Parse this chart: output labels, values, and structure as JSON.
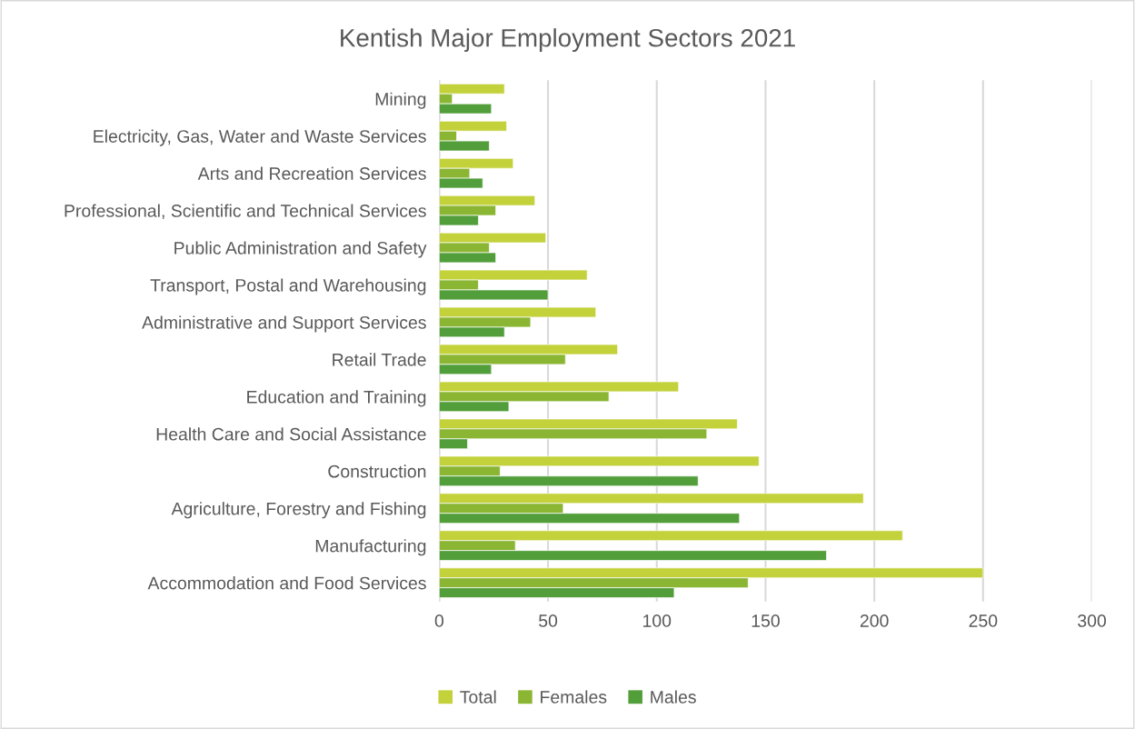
{
  "chart_data": {
    "type": "bar",
    "orientation": "horizontal",
    "title": "Kentish Major Employment Sectors 2021",
    "categories": [
      "Mining",
      "Electricity, Gas, Water and Waste Services",
      "Arts and Recreation Services",
      "Professional, Scientific and Technical Services",
      "Public Administration and Safety",
      "Transport, Postal and Warehousing",
      "Administrative and Support Services",
      "Retail Trade",
      "Education and Training",
      "Health Care and Social Assistance",
      "Construction",
      "Agriculture, Forestry and Fishing",
      "Manufacturing",
      "Accommodation and Food Services"
    ],
    "series": [
      {
        "name": "Total",
        "color": "#c3d13b",
        "values": [
          30,
          31,
          34,
          44,
          49,
          68,
          72,
          82,
          110,
          137,
          147,
          195,
          213,
          250
        ]
      },
      {
        "name": "Females",
        "color": "#8ab634",
        "values": [
          6,
          8,
          14,
          26,
          23,
          18,
          42,
          58,
          78,
          123,
          28,
          57,
          35,
          142
        ]
      },
      {
        "name": "Males",
        "color": "#529e3a",
        "values": [
          24,
          23,
          20,
          18,
          26,
          50,
          30,
          24,
          32,
          13,
          119,
          138,
          178,
          108
        ]
      }
    ],
    "xlim": [
      0,
      300
    ],
    "xticks": [
      0,
      50,
      100,
      150,
      200,
      250,
      300
    ],
    "grid": "x",
    "legend": "bottom"
  }
}
